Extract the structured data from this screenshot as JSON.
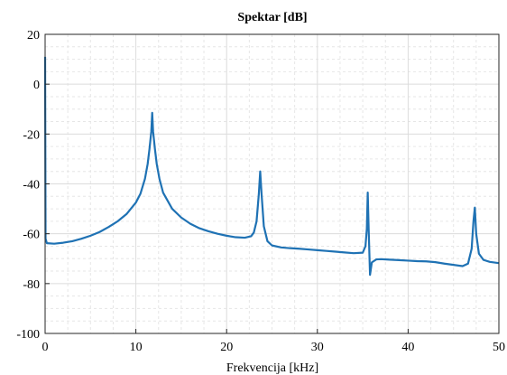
{
  "chart_data": {
    "type": "line",
    "title": "Spektar [dB]",
    "xlabel": "Frekvencija [kHz]",
    "ylabel": "",
    "xlim": [
      0,
      50
    ],
    "ylim": [
      -100,
      20
    ],
    "xticks": [
      0,
      10,
      20,
      30,
      40,
      50
    ],
    "yticks": [
      20,
      0,
      -20,
      -40,
      -60,
      -80,
      -100
    ],
    "x_tick_labels": [
      "0",
      "10",
      "20",
      "30",
      "40",
      "50"
    ],
    "y_tick_labels": [
      "20",
      "0",
      "-20",
      "-40",
      "-60",
      "-80",
      "-100"
    ],
    "grid": true,
    "minor_grid": true,
    "series": [
      {
        "color": "#1f72b4",
        "points": [
          [
            0,
            11
          ],
          [
            0.05,
            -62
          ],
          [
            0.2,
            -63.8
          ],
          [
            1,
            -64
          ],
          [
            2,
            -63.6
          ],
          [
            3,
            -63
          ],
          [
            4,
            -62
          ],
          [
            5,
            -60.8
          ],
          [
            6,
            -59.3
          ],
          [
            7,
            -57.3
          ],
          [
            8,
            -55
          ],
          [
            9,
            -52
          ],
          [
            10,
            -47.5
          ],
          [
            10.5,
            -44
          ],
          [
            11,
            -38
          ],
          [
            11.3,
            -32
          ],
          [
            11.5,
            -26
          ],
          [
            11.7,
            -19
          ],
          [
            11.8,
            -11.5
          ],
          [
            11.9,
            -19
          ],
          [
            12.1,
            -26
          ],
          [
            12.3,
            -32
          ],
          [
            12.6,
            -38
          ],
          [
            13,
            -43.5
          ],
          [
            14,
            -50
          ],
          [
            15,
            -53.5
          ],
          [
            16,
            -56
          ],
          [
            17,
            -57.8
          ],
          [
            18,
            -59
          ],
          [
            19,
            -60
          ],
          [
            20,
            -60.8
          ],
          [
            21,
            -61.4
          ],
          [
            22,
            -61.6
          ],
          [
            22.7,
            -61
          ],
          [
            23,
            -59.5
          ],
          [
            23.3,
            -55
          ],
          [
            23.55,
            -44
          ],
          [
            23.7,
            -35
          ],
          [
            23.85,
            -44
          ],
          [
            24.1,
            -57
          ],
          [
            24.5,
            -63
          ],
          [
            25,
            -64.7
          ],
          [
            26,
            -65.5
          ],
          [
            27,
            -65.8
          ],
          [
            28,
            -66
          ],
          [
            29,
            -66.3
          ],
          [
            30,
            -66.6
          ],
          [
            31,
            -66.9
          ],
          [
            32,
            -67.2
          ],
          [
            33,
            -67.5
          ],
          [
            34,
            -67.8
          ],
          [
            35,
            -67.6
          ],
          [
            35.3,
            -65
          ],
          [
            35.45,
            -58
          ],
          [
            35.55,
            -43.5
          ],
          [
            35.65,
            -58
          ],
          [
            35.8,
            -76.5
          ],
          [
            36,
            -71.5
          ],
          [
            36.5,
            -70.3
          ],
          [
            37,
            -70.2
          ],
          [
            38,
            -70.4
          ],
          [
            39,
            -70.6
          ],
          [
            40,
            -70.8
          ],
          [
            41,
            -71
          ],
          [
            42,
            -71.1
          ],
          [
            43,
            -71.4
          ],
          [
            44,
            -72
          ],
          [
            45,
            -72.5
          ],
          [
            46,
            -73
          ],
          [
            46.6,
            -72
          ],
          [
            47,
            -66
          ],
          [
            47.2,
            -55
          ],
          [
            47.35,
            -49.5
          ],
          [
            47.5,
            -60
          ],
          [
            47.8,
            -68
          ],
          [
            48.3,
            -70.5
          ],
          [
            49,
            -71.3
          ],
          [
            50,
            -71.8
          ]
        ]
      }
    ]
  }
}
